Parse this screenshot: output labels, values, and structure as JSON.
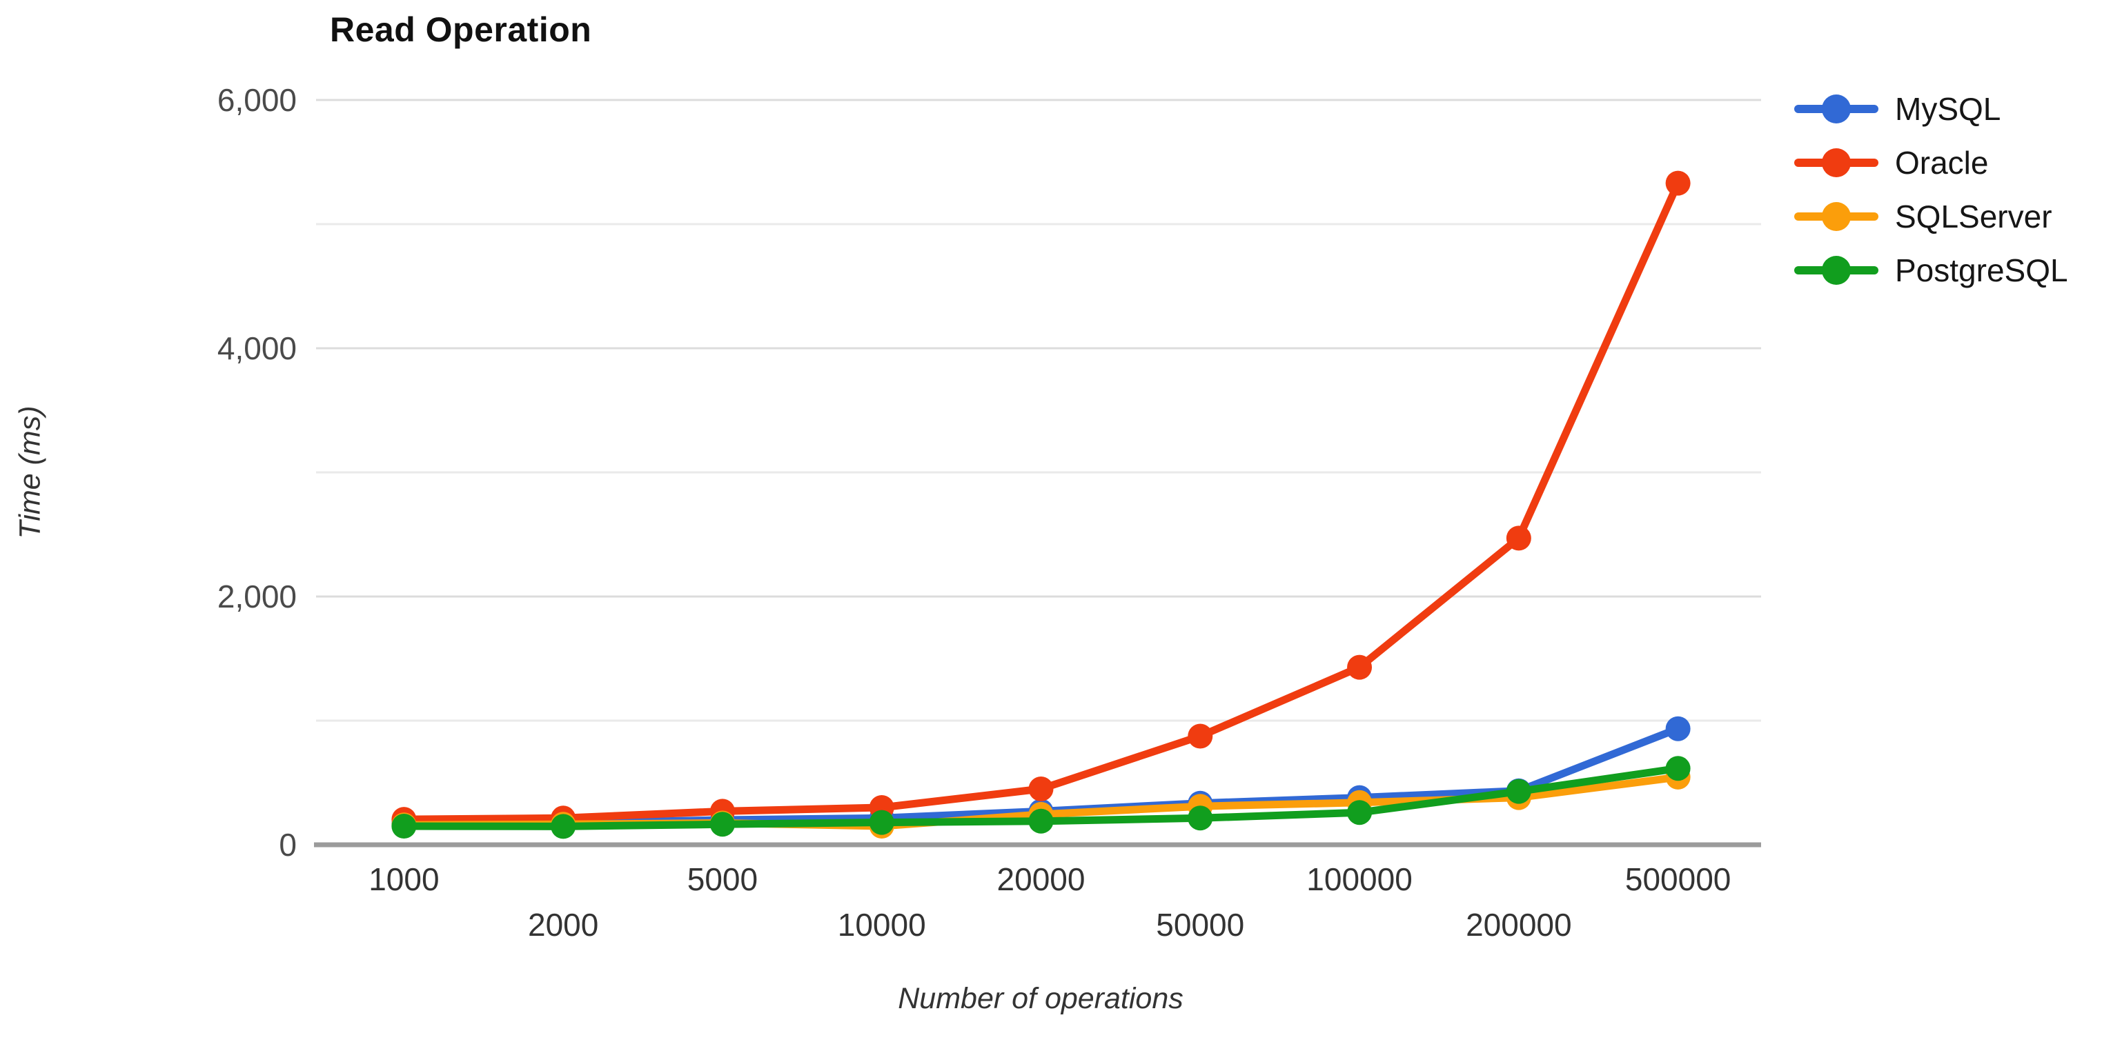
{
  "title": "Read Operation",
  "chart_data": {
    "type": "line",
    "title": "Read Operation",
    "xlabel": "Number of operations",
    "ylabel": "Time (ms)",
    "categories": [
      1000,
      2000,
      5000,
      10000,
      20000,
      50000,
      100000,
      200000,
      500000
    ],
    "x_tick_labels": [
      "1000",
      "2000",
      "5000",
      "10000",
      "20000",
      "50000",
      "100000",
      "200000",
      "500000"
    ],
    "x_tick_layout": "staggered-two-rows",
    "ylim": [
      0,
      6000
    ],
    "y_ticks": [
      {
        "value": 0,
        "label": "0"
      },
      {
        "value": 2000,
        "label": "2,000"
      },
      {
        "value": 4000,
        "label": "4,000"
      },
      {
        "value": 6000,
        "label": "6,000"
      }
    ],
    "y_minor_gridlines": [
      1000,
      3000,
      5000
    ],
    "grid": true,
    "legend_position": "right",
    "series": [
      {
        "name": "MySQL",
        "color": "#3169D5",
        "values": [
          170,
          175,
          200,
          215,
          270,
          335,
          380,
          435,
          935
        ]
      },
      {
        "name": "Oracle",
        "color": "#F03C10",
        "values": [
          205,
          215,
          270,
          300,
          450,
          875,
          1430,
          2470,
          5330
        ]
      },
      {
        "name": "SQLServer",
        "color": "#FB9E0B",
        "values": [
          160,
          165,
          175,
          150,
          245,
          310,
          340,
          380,
          545
        ]
      },
      {
        "name": "PostgreSQL",
        "color": "#119E1E",
        "values": [
          150,
          148,
          165,
          180,
          190,
          215,
          260,
          430,
          615
        ]
      }
    ],
    "colors": {
      "major_gridline": "#dcdcdc",
      "minor_gridline": "#eaeaea",
      "axis_line": "#9b9b9b"
    }
  }
}
